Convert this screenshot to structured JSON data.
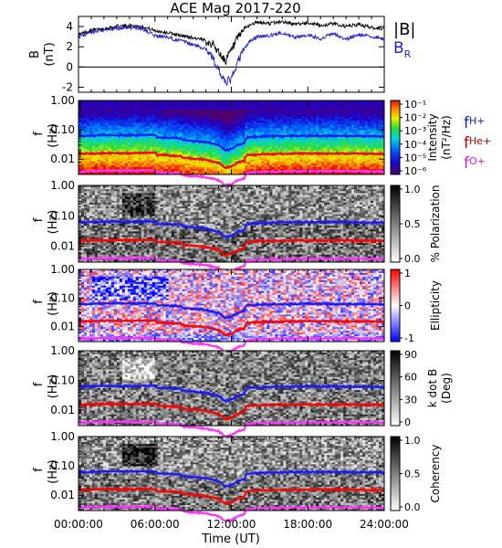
{
  "title": "ACE Mag 2017-220",
  "chart_data": {
    "type": "line",
    "time_axis": {
      "label": "Time (UT)",
      "range_hours": [
        0,
        24
      ],
      "ticks": [
        "00:00:00",
        "06:00:00",
        "12:00:00",
        "18:00:00",
        "24:00:00"
      ]
    },
    "freq_ticks": [
      "1.00",
      "0.10",
      "0.01"
    ],
    "freq_range_hz": [
      0.003,
      1.0
    ],
    "freq_scale": "log",
    "panels": [
      {
        "key": "field",
        "type": "line",
        "ylabel": "B",
        "yunit": "(nT)",
        "ylim": [
          -2.5,
          5
        ],
        "yticks": [
          "4",
          "2",
          "0",
          "-2"
        ],
        "legend": [
          {
            "label": "|B|",
            "color": "#000000"
          },
          {
            "label": "B",
            "sub": "R",
            "color": "#2222cc"
          }
        ],
        "series": [
          {
            "name": "|B|",
            "color": "#000000",
            "x": [
              0,
              1,
              2,
              3,
              4,
              5,
              6,
              7,
              8,
              9,
              10,
              10.5,
              11,
              11.5,
              12,
              12.5,
              13,
              13.5,
              14,
              15,
              16,
              17,
              18,
              19,
              20,
              21,
              22,
              23,
              24
            ],
            "y": [
              3.2,
              3.6,
              3.8,
              4.0,
              4.1,
              4.0,
              3.6,
              3.4,
              3.1,
              2.9,
              2.6,
              2.3,
              1.5,
              0.6,
              1.6,
              2.8,
              3.8,
              4.2,
              4.4,
              4.3,
              4.5,
              4.2,
              4.4,
              4.1,
              4.3,
              4.0,
              4.2,
              3.9,
              3.8
            ]
          },
          {
            "name": "B_R",
            "color": "#2222cc",
            "x": [
              0,
              1,
              2,
              3,
              4,
              5,
              6,
              7,
              8,
              9,
              10,
              10.5,
              11,
              11.5,
              12,
              12.5,
              13,
              13.5,
              14,
              15,
              16,
              17,
              18,
              19,
              20,
              21,
              22,
              23,
              24
            ],
            "y": [
              3.0,
              3.4,
              3.6,
              3.8,
              3.9,
              3.8,
              3.1,
              2.9,
              2.6,
              2.2,
              1.8,
              1.0,
              -0.3,
              -1.6,
              -1.2,
              0.5,
              1.8,
              2.6,
              3.0,
              3.1,
              3.4,
              2.9,
              3.2,
              2.8,
              3.3,
              2.7,
              3.2,
              3.0,
              2.8
            ]
          }
        ]
      },
      {
        "key": "intensity",
        "type": "heatmap",
        "ylabel": "f",
        "yunit": "(Hz)",
        "colorbar": {
          "label": "Intensity",
          "unit": "(nT²/Hz)",
          "ticks": [
            "10⁻¹",
            "10⁻²",
            "10⁻³",
            "10⁻⁴",
            "10⁻⁵",
            "10⁻⁶"
          ],
          "scale": "rainbow"
        },
        "gyro_labels": [
          {
            "main": "f",
            "sub": "H+",
            "color": "#1a1aaa"
          },
          {
            "main": "f",
            "sub": "He+",
            "color": "#b00000"
          },
          {
            "main": "f",
            "sub": "O+",
            "color": "#cc22cc"
          }
        ]
      },
      {
        "key": "polarization",
        "type": "heatmap",
        "ylabel": "f",
        "yunit": "(Hz)",
        "colorbar": {
          "label": "% Polarization",
          "unit": "",
          "ticks": [
            "1.0",
            "0.5",
            "0.0"
          ],
          "scale": "gray"
        }
      },
      {
        "key": "ellipticity",
        "type": "heatmap",
        "ylabel": "f",
        "yunit": "(Hz)",
        "colorbar": {
          "label": "Ellipticity",
          "unit": "",
          "ticks": [
            "1",
            "0",
            "-1"
          ],
          "scale": "bwr"
        }
      },
      {
        "key": "kdotb",
        "type": "heatmap",
        "ylabel": "f",
        "yunit": "(Hz)",
        "colorbar": {
          "label": "k dot B",
          "unit": "(Deg)",
          "ticks": [
            "90",
            "60",
            "30",
            "0"
          ],
          "scale": "gray"
        }
      },
      {
        "key": "coherency",
        "type": "heatmap",
        "ylabel": "f",
        "yunit": "(Hz)",
        "colorbar": {
          "label": "Coherency",
          "unit": "",
          "ticks": [
            "1.0",
            "0.5",
            "0.0"
          ],
          "scale": "gray"
        }
      }
    ],
    "gyrofrequencies": {
      "x": [
        0,
        2,
        4,
        6,
        6.2,
        8,
        8.2,
        10,
        11,
        11.5,
        12,
        12.5,
        13,
        13.2,
        15,
        18,
        21,
        24
      ],
      "fH": [
        0.06,
        0.065,
        0.065,
        0.066,
        0.055,
        0.052,
        0.045,
        0.038,
        0.03,
        0.02,
        0.022,
        0.03,
        0.035,
        0.055,
        0.06,
        0.062,
        0.062,
        0.06
      ],
      "fHe": [
        0.015,
        0.016,
        0.016,
        0.0165,
        0.0138,
        0.013,
        0.0112,
        0.0095,
        0.0075,
        0.005,
        0.0055,
        0.0075,
        0.0088,
        0.0138,
        0.015,
        0.0155,
        0.0155,
        0.015
      ],
      "fO": [
        0.0038,
        0.004,
        0.004,
        0.0041,
        0.0035,
        0.0033,
        0.0028,
        0.0024,
        0.0019,
        0.0013,
        0.0014,
        0.0019,
        0.0022,
        0.0034,
        0.0037,
        0.0039,
        0.0039,
        0.0038
      ],
      "colors": {
        "fH": "#1a1aff",
        "fHe": "#ff0000",
        "fO": "#ff33ff"
      }
    }
  }
}
